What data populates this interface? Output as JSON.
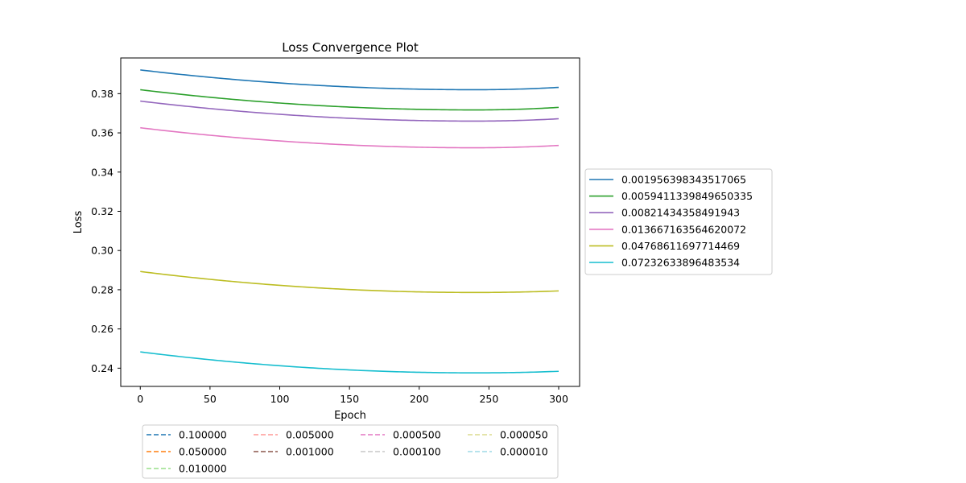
{
  "chart_data": {
    "type": "line",
    "title": "Loss Convergence Plot",
    "xlabel": "Epoch",
    "ylabel": "Loss",
    "xlim": [
      -14,
      315
    ],
    "ylim": [
      0.2307,
      0.3982
    ],
    "xticks": [
      0,
      50,
      100,
      150,
      200,
      250,
      300
    ],
    "xtick_labels": [
      "0",
      "50",
      "100",
      "150",
      "200",
      "250",
      "300"
    ],
    "yticks": [
      0.24,
      0.26,
      0.28,
      0.3,
      0.32,
      0.34,
      0.36,
      0.38
    ],
    "ytick_labels": [
      "0.24",
      "0.26",
      "0.28",
      "0.30",
      "0.32",
      "0.34",
      "0.36",
      "0.38"
    ],
    "grid": false,
    "series": [
      {
        "name": "0.001956398343517065",
        "color": "#1f77b4",
        "start": 0.3921,
        "min": 0.382,
        "min_epoch": 240,
        "end": 0.3832
      },
      {
        "name": "0.0059411339849650335",
        "color": "#2ca02c",
        "start": 0.382,
        "min": 0.3717,
        "min_epoch": 240,
        "end": 0.373
      },
      {
        "name": "0.00821434358491943",
        "color": "#9467bd",
        "start": 0.3762,
        "min": 0.366,
        "min_epoch": 240,
        "end": 0.3672
      },
      {
        "name": "0.013667163564620072",
        "color": "#e377c2",
        "start": 0.3626,
        "min": 0.3524,
        "min_epoch": 240,
        "end": 0.3536
      },
      {
        "name": "0.04768611697714469",
        "color": "#bcbd22",
        "start": 0.2893,
        "min": 0.2786,
        "min_epoch": 240,
        "end": 0.2794
      },
      {
        "name": "0.07232633896483534",
        "color": "#17becf",
        "start": 0.2483,
        "min": 0.2376,
        "min_epoch": 240,
        "end": 0.2384
      }
    ],
    "right_legend": {
      "placement": "center-right outside",
      "entries": [
        {
          "label": "0.001956398343517065",
          "color": "#1f77b4"
        },
        {
          "label": "0.0059411339849650335",
          "color": "#2ca02c"
        },
        {
          "label": "0.00821434358491943",
          "color": "#9467bd"
        },
        {
          "label": "0.013667163564620072",
          "color": "#e377c2"
        },
        {
          "label": "0.04768611697714469",
          "color": "#bcbd22"
        },
        {
          "label": "0.07232633896483534",
          "color": "#17becf"
        }
      ]
    },
    "bottom_legend": {
      "placement": "below axes",
      "style": "dashed",
      "columns": [
        [
          {
            "label": "0.100000",
            "color": "#1f77b4"
          },
          {
            "label": "0.050000",
            "color": "#ff7f0e"
          },
          {
            "label": "0.010000",
            "color": "#98df8a"
          }
        ],
        [
          {
            "label": "0.005000",
            "color": "#ff9896"
          },
          {
            "label": "0.001000",
            "color": "#8c564b"
          }
        ],
        [
          {
            "label": "0.000500",
            "color": "#e377c2"
          },
          {
            "label": "0.000100",
            "color": "#c7c7c7"
          }
        ],
        [
          {
            "label": "0.000050",
            "color": "#dbdb8d"
          },
          {
            "label": "0.000010",
            "color": "#9edae5"
          }
        ]
      ]
    }
  }
}
